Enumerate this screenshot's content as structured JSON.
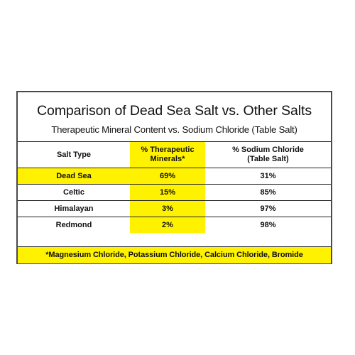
{
  "title": "Comparison of Dead Sea Salt vs. Other Salts",
  "subtitle": "Therapeutic Mineral Content vs. Sodium Chloride (Table Salt)",
  "columns": {
    "salt_type": "Salt Type",
    "therapeutic_line1": "% Therapeutic",
    "therapeutic_line2": "Minerals*",
    "sodium_line1": "%  Sodium Chloride",
    "sodium_line2": "(Table Salt)"
  },
  "rows": [
    {
      "name": "Dead Sea",
      "minerals": "69%",
      "sodium": "31%"
    },
    {
      "name": "Celtic",
      "minerals": "15%",
      "sodium": "85%"
    },
    {
      "name": "Himalayan",
      "minerals": "3%",
      "sodium": "97%"
    },
    {
      "name": "Redmond",
      "minerals": "2%",
      "sodium": "98%"
    }
  ],
  "footnote": "*Magnesium Chloride, Potassium Chloride, Calcium Chloride, Bromide",
  "colors": {
    "highlight": "#fff200",
    "border": "#4a4a4a",
    "text": "#111111"
  }
}
